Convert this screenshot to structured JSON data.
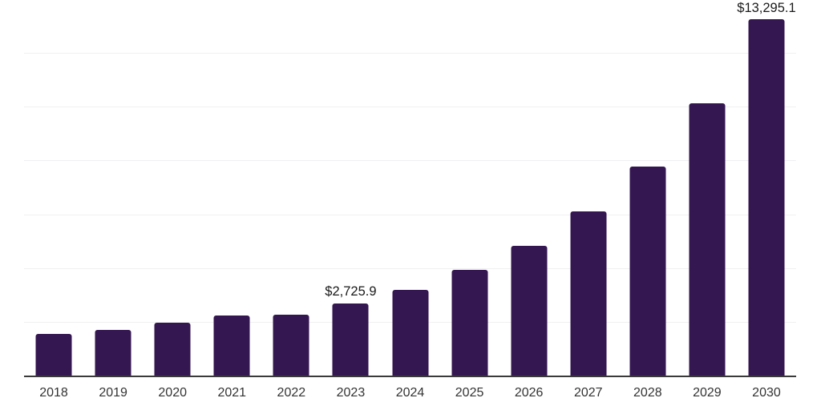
{
  "chart_data": {
    "type": "bar",
    "title": "",
    "xlabel": "",
    "ylabel": "",
    "categories": [
      "2018",
      "2019",
      "2020",
      "2021",
      "2022",
      "2023",
      "2024",
      "2025",
      "2026",
      "2027",
      "2028",
      "2029",
      "2030"
    ],
    "values": [
      1570,
      1725,
      1995,
      2260,
      2295,
      2725.9,
      3215,
      3960,
      4855,
      6135,
      7805,
      10155,
      13295.1
    ],
    "annotations": [
      {
        "category": "2023",
        "text": "$2,725.9"
      },
      {
        "category": "2030",
        "text": "$13,295.1"
      }
    ],
    "ylim": [
      0,
      14000
    ],
    "grid_interval": 2000,
    "grid": "horizontal-only",
    "legend": "none",
    "y_tick_labels_visible": false,
    "colors": {
      "bar": "#341651",
      "axis_line": "#3a3a3a",
      "gridline": "#f0f0f2",
      "data_label_text": "#1a1a1a",
      "tick_label_text": "#333333",
      "background": "#ffffff"
    }
  }
}
